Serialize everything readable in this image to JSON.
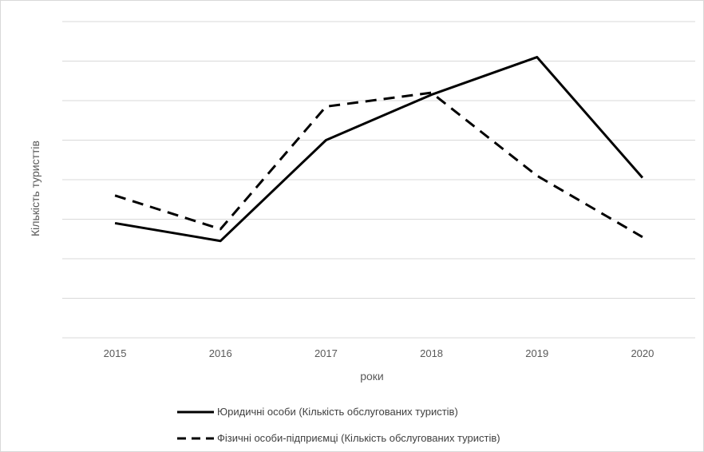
{
  "chart_data": {
    "type": "line",
    "title": "",
    "xlabel": "роки",
    "ylabel": "Кількість туристтів",
    "categories": [
      "2015",
      "2016",
      "2017",
      "2018",
      "2019",
      "2020"
    ],
    "ylim": [
      0,
      8
    ],
    "grid": true,
    "legend_position": "bottom",
    "y_tick_labels_shown": false,
    "series": [
      {
        "name": "Юридичні особи (Кількість обслугованих туристів)",
        "line_style": "solid",
        "color": "#000000",
        "values": [
          2.9,
          2.45,
          5.0,
          6.15,
          7.1,
          4.05
        ]
      },
      {
        "name": "Фізичні особи-підприємці (Кількість обслугованих туристів)",
        "line_style": "dashed",
        "color": "#000000",
        "values": [
          3.6,
          2.75,
          5.85,
          6.2,
          4.1,
          2.55
        ]
      }
    ]
  }
}
